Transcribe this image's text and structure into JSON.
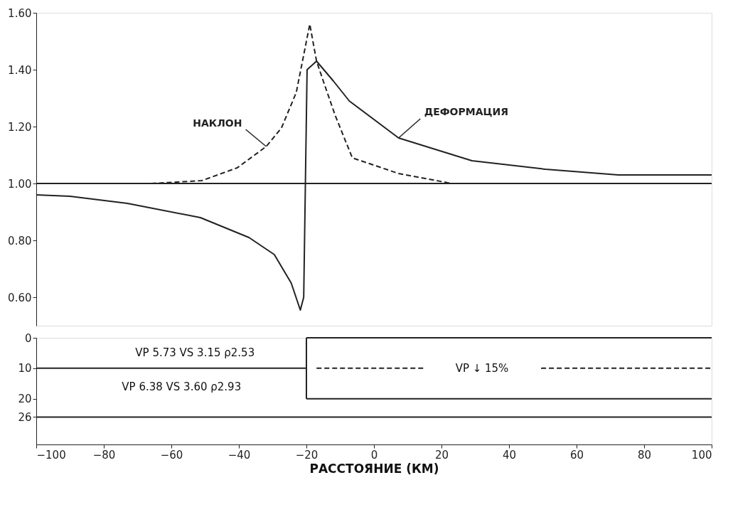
{
  "chart_data": [
    {
      "type": "line",
      "xlim": [
        -100,
        100
      ],
      "ylim": [
        0.5,
        1.6
      ],
      "yticks": [
        {
          "value": 0.6,
          "label": "0.60"
        },
        {
          "value": 0.8,
          "label": "0.80"
        },
        {
          "value": 1.0,
          "label": "1.00"
        },
        {
          "value": 1.2,
          "label": "1.20"
        },
        {
          "value": 1.4,
          "label": "1.40"
        },
        {
          "value": 1.6,
          "label": "1.60"
        }
      ],
      "tick_labels": "y",
      "grid": false,
      "ref_lines": [
        {
          "axis": "y",
          "value": 1.0,
          "color": "#222222"
        }
      ],
      "series": [
        {
          "name": "ДЕФОРМАЦИЯ",
          "color": "#222222",
          "line_style": "solid",
          "x": [
            -100,
            -90,
            -73,
            -51.4,
            -37,
            -29.5,
            -24.5,
            -21.8,
            -20.8,
            -19.8,
            -17,
            -12,
            -7.3,
            7.3,
            29,
            50.8,
            72.4,
            100
          ],
          "values": [
            0.96,
            0.955,
            0.93,
            0.88,
            0.81,
            0.75,
            0.65,
            0.555,
            0.6,
            1.4,
            1.43,
            1.36,
            1.29,
            1.16,
            1.08,
            1.05,
            1.03,
            1.03
          ]
        },
        {
          "name": "НАКЛОН",
          "color": "#222222",
          "line_style": "dashed",
          "x": [
            -66,
            -51,
            -40.5,
            -31.9,
            -27.4,
            -23,
            -19,
            -17,
            -15,
            -11.5,
            -6.4,
            7.3,
            23
          ],
          "values": [
            1.0,
            1.01,
            1.055,
            1.13,
            1.195,
            1.32,
            1.56,
            1.43,
            1.36,
            1.24,
            1.09,
            1.035,
            1.0
          ]
        }
      ]
    },
    {
      "type": "line",
      "xlim": [
        -100,
        100
      ],
      "ylim": [
        35,
        0
      ],
      "xticks": [
        -100,
        -80,
        -60,
        -40,
        -20,
        0,
        20,
        40,
        60,
        80,
        100
      ],
      "yticks": [
        0,
        10,
        20,
        26
      ],
      "xlabel": "РАССТОЯНИЕ (КМ)",
      "grid": false,
      "series": [
        {
          "color": "#222222",
          "line_style": "solid",
          "x": [
            -100,
            -20
          ],
          "values": [
            10,
            10
          ]
        },
        {
          "color": "#222222",
          "line_style": "solid",
          "x": [
            -20,
            100
          ],
          "values": [
            0,
            0
          ]
        },
        {
          "color": "#222222",
          "line_style": "solid",
          "x": [
            -20,
            100
          ],
          "values": [
            20,
            20
          ]
        },
        {
          "color": "#222222",
          "line_style": "solid",
          "x": [
            -20,
            -20
          ],
          "values": [
            0,
            20
          ]
        },
        {
          "color": "#222222",
          "line_style": "solid",
          "x": [
            -100,
            100
          ],
          "values": [
            26,
            26
          ]
        },
        {
          "color": "#222222",
          "line_style": "dashed",
          "x": [
            -17,
            15
          ],
          "values": [
            10,
            10
          ]
        },
        {
          "color": "#222222",
          "line_style": "dashed",
          "x": [
            49.5,
            100
          ],
          "values": [
            10,
            10
          ]
        }
      ],
      "annotations": [
        "VP 5.73  VS 3.15  ρ2.53",
        "VP 6.38  VS 3.60  ρ2.93",
        "VP ↓ 15%"
      ]
    }
  ]
}
